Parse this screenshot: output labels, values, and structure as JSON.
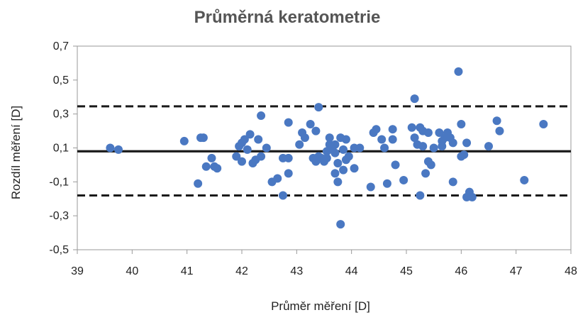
{
  "chart_data": {
    "type": "scatter",
    "title": "Průměrná keratometrie",
    "xlabel": "Průměr měření [D]",
    "ylabel": "Rozdíl  měření [D]",
    "xlim": [
      39,
      48
    ],
    "ylim": [
      -0.5,
      0.7
    ],
    "x_ticks": [
      39,
      40,
      41,
      42,
      43,
      44,
      45,
      46,
      47,
      48
    ],
    "x_tick_labels": [
      "39",
      "40",
      "41",
      "42",
      "43",
      "44",
      "45",
      "46",
      "47",
      "48"
    ],
    "y_ticks": [
      0.7,
      0.5,
      0.3,
      0.1,
      -0.1,
      -0.3,
      -0.5
    ],
    "y_tick_labels": [
      "0,7",
      "0,5",
      "0,3",
      "0,1",
      "-0,1",
      "-0,3",
      "-0,5"
    ],
    "grid": false,
    "reference_lines": [
      {
        "y": 0.08,
        "style": "solid"
      },
      {
        "y": 0.345,
        "style": "dashed"
      },
      {
        "y": -0.18,
        "style": "dashed"
      }
    ],
    "colors": {
      "points": "#4a78c2",
      "lines": "#1a1a1a",
      "frame": "#9a9a9a"
    },
    "points": [
      {
        "x": 39.6,
        "y": 0.1
      },
      {
        "x": 39.75,
        "y": 0.09
      },
      {
        "x": 40.95,
        "y": 0.14
      },
      {
        "x": 41.2,
        "y": -0.11
      },
      {
        "x": 41.25,
        "y": 0.16
      },
      {
        "x": 41.3,
        "y": 0.16
      },
      {
        "x": 41.35,
        "y": -0.01
      },
      {
        "x": 41.45,
        "y": 0.04
      },
      {
        "x": 41.5,
        "y": -0.01
      },
      {
        "x": 41.55,
        "y": -0.02
      },
      {
        "x": 41.9,
        "y": 0.05
      },
      {
        "x": 41.95,
        "y": 0.11
      },
      {
        "x": 42.0,
        "y": 0.13
      },
      {
        "x": 42.0,
        "y": 0.02
      },
      {
        "x": 42.05,
        "y": 0.15
      },
      {
        "x": 42.1,
        "y": 0.09
      },
      {
        "x": 42.15,
        "y": 0.18
      },
      {
        "x": 42.2,
        "y": 0.01
      },
      {
        "x": 42.25,
        "y": 0.03
      },
      {
        "x": 42.3,
        "y": 0.15
      },
      {
        "x": 42.35,
        "y": 0.05
      },
      {
        "x": 42.35,
        "y": 0.29
      },
      {
        "x": 42.45,
        "y": 0.1
      },
      {
        "x": 42.55,
        "y": -0.1
      },
      {
        "x": 42.65,
        "y": -0.08
      },
      {
        "x": 42.75,
        "y": 0.04
      },
      {
        "x": 42.75,
        "y": -0.18
      },
      {
        "x": 42.85,
        "y": -0.05
      },
      {
        "x": 42.85,
        "y": 0.04
      },
      {
        "x": 42.85,
        "y": 0.25
      },
      {
        "x": 43.05,
        "y": 0.12
      },
      {
        "x": 43.1,
        "y": 0.19
      },
      {
        "x": 43.15,
        "y": 0.16
      },
      {
        "x": 43.25,
        "y": 0.24
      },
      {
        "x": 43.3,
        "y": 0.04
      },
      {
        "x": 43.35,
        "y": 0.2
      },
      {
        "x": 43.35,
        "y": 0.02
      },
      {
        "x": 43.4,
        "y": 0.34
      },
      {
        "x": 43.4,
        "y": 0.05
      },
      {
        "x": 43.45,
        "y": 0.04
      },
      {
        "x": 43.5,
        "y": 0.02
      },
      {
        "x": 43.55,
        "y": 0.08
      },
      {
        "x": 43.55,
        "y": 0.04
      },
      {
        "x": 43.6,
        "y": 0.16
      },
      {
        "x": 43.6,
        "y": 0.12
      },
      {
        "x": 43.65,
        "y": 0.09
      },
      {
        "x": 43.7,
        "y": 0.12
      },
      {
        "x": 43.7,
        "y": 0.07
      },
      {
        "x": 43.7,
        "y": -0.05
      },
      {
        "x": 43.75,
        "y": 0.01
      },
      {
        "x": 43.75,
        "y": -0.1
      },
      {
        "x": 43.8,
        "y": -0.35
      },
      {
        "x": 43.8,
        "y": 0.16
      },
      {
        "x": 43.85,
        "y": 0.09
      },
      {
        "x": 43.85,
        "y": -0.03
      },
      {
        "x": 43.9,
        "y": 0.15
      },
      {
        "x": 43.9,
        "y": 0.03
      },
      {
        "x": 43.95,
        "y": 0.05
      },
      {
        "x": 44.05,
        "y": 0.1
      },
      {
        "x": 44.05,
        "y": -0.02
      },
      {
        "x": 44.15,
        "y": 0.1
      },
      {
        "x": 44.35,
        "y": -0.13
      },
      {
        "x": 44.4,
        "y": 0.19
      },
      {
        "x": 44.45,
        "y": 0.21
      },
      {
        "x": 44.55,
        "y": 0.15
      },
      {
        "x": 44.6,
        "y": 0.1
      },
      {
        "x": 44.65,
        "y": -0.11
      },
      {
        "x": 44.75,
        "y": 0.15
      },
      {
        "x": 44.75,
        "y": 0.21
      },
      {
        "x": 44.8,
        "y": 0.0
      },
      {
        "x": 44.95,
        "y": -0.09
      },
      {
        "x": 45.1,
        "y": 0.22
      },
      {
        "x": 45.15,
        "y": 0.39
      },
      {
        "x": 45.15,
        "y": 0.16
      },
      {
        "x": 45.2,
        "y": 0.12
      },
      {
        "x": 45.25,
        "y": -0.18
      },
      {
        "x": 45.25,
        "y": 0.22
      },
      {
        "x": 45.3,
        "y": 0.2
      },
      {
        "x": 45.3,
        "y": 0.11
      },
      {
        "x": 45.35,
        "y": -0.05
      },
      {
        "x": 45.4,
        "y": 0.19
      },
      {
        "x": 45.4,
        "y": 0.02
      },
      {
        "x": 45.45,
        "y": -0.0
      },
      {
        "x": 45.5,
        "y": 0.1
      },
      {
        "x": 45.6,
        "y": 0.19
      },
      {
        "x": 45.65,
        "y": 0.14
      },
      {
        "x": 45.65,
        "y": 0.11
      },
      {
        "x": 45.7,
        "y": 0.16
      },
      {
        "x": 45.75,
        "y": 0.19
      },
      {
        "x": 45.8,
        "y": 0.16
      },
      {
        "x": 45.85,
        "y": 0.13
      },
      {
        "x": 45.85,
        "y": -0.1
      },
      {
        "x": 45.95,
        "y": 0.55
      },
      {
        "x": 46.0,
        "y": 0.05
      },
      {
        "x": 46.0,
        "y": 0.24
      },
      {
        "x": 46.05,
        "y": 0.06
      },
      {
        "x": 46.1,
        "y": 0.13
      },
      {
        "x": 46.1,
        "y": -0.19
      },
      {
        "x": 46.15,
        "y": -0.16
      },
      {
        "x": 46.2,
        "y": -0.19
      },
      {
        "x": 46.5,
        "y": 0.11
      },
      {
        "x": 46.65,
        "y": 0.26
      },
      {
        "x": 46.7,
        "y": 0.2
      },
      {
        "x": 47.15,
        "y": -0.09
      },
      {
        "x": 47.5,
        "y": 0.24
      }
    ]
  }
}
